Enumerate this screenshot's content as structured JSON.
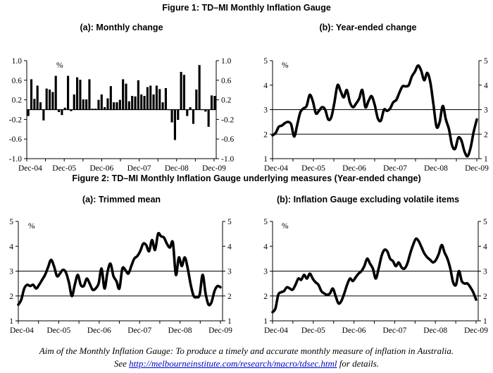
{
  "figure1": {
    "title": "Figure 1: TD–MI Monthly Inflation Gauge"
  },
  "figure2": {
    "title": "Figure 2: TD–MI Monthly Inflation Gauge underlying measures (Year-ended change)"
  },
  "footer": {
    "aim_text": "Aim of the Monthly Inflation Gauge: To produce a timely and accurate monthly measure of inflation in Australia.",
    "see_prefix": "See ",
    "link_text": "http://melbourneinstitute.com/research/macro/tdsec.html",
    "see_suffix": " for details."
  },
  "chart_data": [
    {
      "id": "monthly-change",
      "type": "bar",
      "title": "(a): Monthly change",
      "unit_label": "%",
      "xlabel": "",
      "ylabel": "%",
      "ylim": [
        -1.0,
        1.0
      ],
      "yticks": [
        "1.0",
        "0.6",
        "0.2",
        "-0.2",
        "-0.6",
        "-1.0"
      ],
      "ytick_values": [
        1.0,
        0.6,
        0.2,
        -0.2,
        -0.6,
        -1.0
      ],
      "xtick_labels": [
        "Dec-04",
        "Dec-05",
        "Dec-06",
        "Dec-07",
        "Dec-08",
        "Dec-09"
      ],
      "x_start": "Dec-04",
      "x_end": "Dec-09",
      "gridlines": [],
      "values": [
        -0.13,
        0.62,
        0.22,
        0.49,
        0.15,
        -0.22,
        0.43,
        0.41,
        0.36,
        0.69,
        -0.05,
        -0.11,
        0.04,
        0.69,
        -0.03,
        0.31,
        0.66,
        0.61,
        0.21,
        0.21,
        0.62,
        0.02,
        0.02,
        0.2,
        0.31,
        0.05,
        0.23,
        0.48,
        0.15,
        0.15,
        0.2,
        0.62,
        0.53,
        0.17,
        0.28,
        0.27,
        0.6,
        0.31,
        0.28,
        0.46,
        0.49,
        0.31,
        0.49,
        0.42,
        0.15,
        0.44,
        0.0,
        -0.26,
        -0.62,
        -0.21,
        0.77,
        0.71,
        -0.13,
        0.05,
        -0.29,
        0.41,
        0.91,
        0.0,
        -0.04,
        -0.35,
        0.29,
        0.28
      ]
    },
    {
      "id": "year-ended-change",
      "type": "line",
      "title": "(b): Year-ended change",
      "unit_label": "%",
      "xlabel": "",
      "ylabel": "%",
      "ylim": [
        1,
        5
      ],
      "yticks": [
        "5",
        "4",
        "3",
        "2",
        "1"
      ],
      "ytick_values": [
        5,
        4,
        3,
        2,
        1
      ],
      "xtick_labels": [
        "Dec-04",
        "Dec-05",
        "Dec-06",
        "Dec-07",
        "Dec-08",
        "Dec-09"
      ],
      "x_start": "Dec-04",
      "x_end": "Dec-09",
      "gridlines": [
        2,
        3
      ],
      "values": [
        1.95,
        2.05,
        2.3,
        2.35,
        2.45,
        2.5,
        2.4,
        1.9,
        2.4,
        2.9,
        3.05,
        3.15,
        3.6,
        3.35,
        2.85,
        2.95,
        3.1,
        3.0,
        2.6,
        2.7,
        3.3,
        4.0,
        3.75,
        3.5,
        3.8,
        3.3,
        3.1,
        3.25,
        3.45,
        3.8,
        3.1,
        3.35,
        3.55,
        3.2,
        2.65,
        2.55,
        3.0,
        2.95,
        3.05,
        3.3,
        3.4,
        3.7,
        3.95,
        3.95,
        4.0,
        4.35,
        4.55,
        4.8,
        4.6,
        4.2,
        4.5,
        4.1,
        3.2,
        2.3,
        2.5,
        3.15,
        2.6,
        2.2,
        1.55,
        1.4,
        1.85,
        1.75,
        1.3,
        1.1,
        1.45,
        2.1,
        2.6
      ]
    },
    {
      "id": "trimmed-mean",
      "type": "line",
      "title": "(a): Trimmed mean",
      "unit_label": "%",
      "xlabel": "",
      "ylabel": "%",
      "ylim": [
        1,
        5
      ],
      "yticks": [
        "5",
        "4",
        "3",
        "2",
        "1"
      ],
      "ytick_values": [
        5,
        4,
        3,
        2,
        1
      ],
      "xtick_labels": [
        "Dec-04",
        "Dec-05",
        "Dec-06",
        "Dec-07",
        "Dec-08",
        "Dec-09"
      ],
      "x_start": "Dec-04",
      "x_end": "Dec-09",
      "gridlines": [
        2,
        3
      ],
      "values": [
        1.65,
        1.85,
        2.3,
        2.45,
        2.4,
        2.45,
        2.3,
        2.45,
        2.65,
        2.85,
        3.15,
        3.45,
        3.2,
        2.8,
        2.9,
        3.05,
        2.95,
        2.55,
        2.0,
        2.45,
        2.85,
        2.45,
        2.4,
        2.7,
        2.5,
        2.25,
        2.3,
        2.5,
        3.1,
        2.3,
        2.95,
        3.3,
        2.8,
        2.6,
        2.3,
        3.1,
        3.05,
        2.9,
        3.2,
        3.5,
        3.6,
        3.8,
        4.1,
        4.05,
        3.8,
        4.25,
        3.85,
        4.5,
        4.4,
        4.35,
        4.1,
        3.95,
        4.15,
        2.85,
        3.55,
        3.2,
        3.55,
        3.1,
        2.45,
        2.0,
        1.95,
        2.05,
        2.85,
        2.1,
        1.65,
        1.75,
        2.2,
        2.4,
        2.35
      ]
    },
    {
      "id": "excl-volatile",
      "type": "line",
      "title": "(b): Inflation Gauge excluding volatile items",
      "unit_label": "%",
      "xlabel": "",
      "ylabel": "%",
      "ylim": [
        1,
        5
      ],
      "yticks": [
        "5",
        "4",
        "3",
        "2",
        "1"
      ],
      "ytick_values": [
        5,
        4,
        3,
        2,
        1
      ],
      "xtick_labels": [
        "Dec-04",
        "Dec-05",
        "Dec-06",
        "Dec-07",
        "Dec-08",
        "Dec-09"
      ],
      "x_start": "Dec-04",
      "x_end": "Dec-09",
      "gridlines": [
        2,
        3
      ],
      "values": [
        1.35,
        1.5,
        2.05,
        2.15,
        2.2,
        2.35,
        2.3,
        2.25,
        2.45,
        2.7,
        2.65,
        2.85,
        2.7,
        2.9,
        2.7,
        2.55,
        2.45,
        2.2,
        2.1,
        2.05,
        2.1,
        2.3,
        2.0,
        1.7,
        1.8,
        2.1,
        2.45,
        2.7,
        2.6,
        2.75,
        2.9,
        3.0,
        3.2,
        3.5,
        3.3,
        3.1,
        2.7,
        3.1,
        3.6,
        3.85,
        3.8,
        3.5,
        3.4,
        3.2,
        3.35,
        3.15,
        3.1,
        3.3,
        3.7,
        4.05,
        4.3,
        4.2,
        3.95,
        3.7,
        3.55,
        3.45,
        3.35,
        3.45,
        3.7,
        4.05,
        3.75,
        3.5,
        3.1,
        2.55,
        2.45,
        3.0,
        2.6,
        2.5,
        2.5,
        2.35,
        2.15,
        1.85
      ]
    }
  ]
}
